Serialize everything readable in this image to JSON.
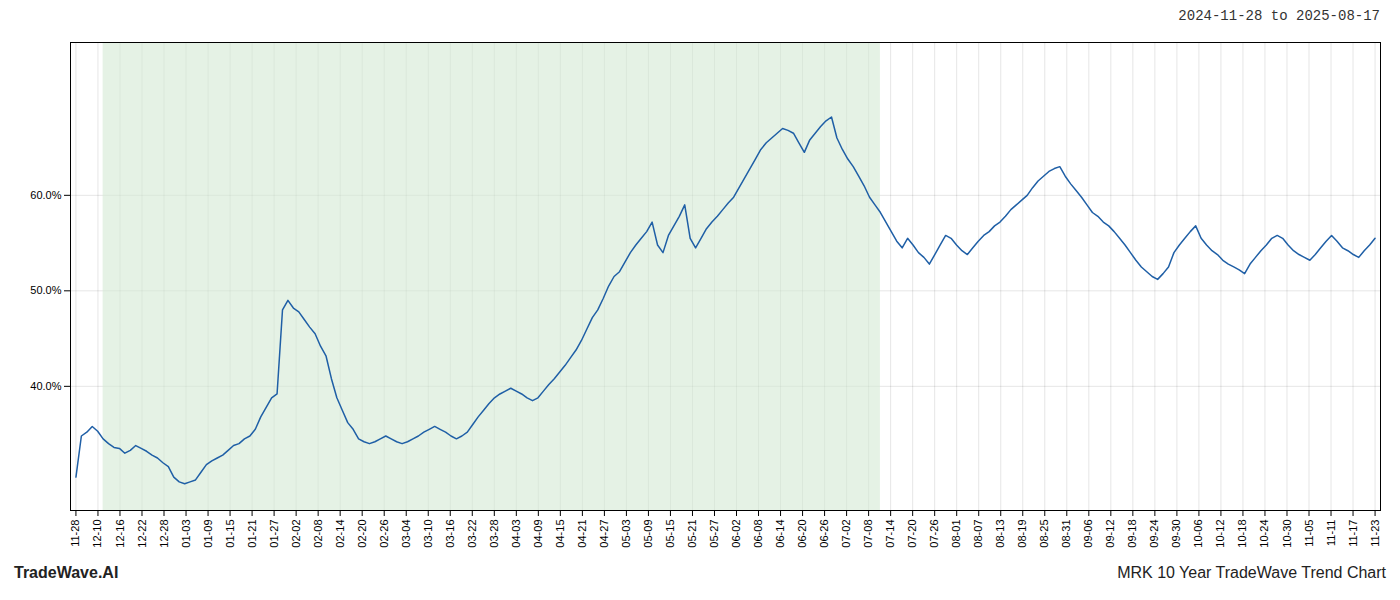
{
  "chart_data": {
    "type": "line",
    "title": "2024-11-28 to 2025-08-17",
    "footer_left": "TradeWave.AI",
    "footer_right": "MRK 10 Year TradeWave Trend Chart",
    "color": "#1f5fa6",
    "grid": true,
    "ylim": [
      0.27,
      0.76
    ],
    "yticks": [
      {
        "value": 0.4,
        "label": "40.0%"
      },
      {
        "value": 0.5,
        "label": "50.0%"
      },
      {
        "value": 0.6,
        "label": "60.0%"
      }
    ],
    "xlim": [
      -1,
      240
    ],
    "xtick_labels": [
      "11-28",
      "12-10",
      "12-16",
      "12-22",
      "12-28",
      "01-03",
      "01-09",
      "01-15",
      "01-21",
      "01-27",
      "02-02",
      "02-08",
      "02-14",
      "02-20",
      "02-26",
      "03-04",
      "03-10",
      "03-16",
      "03-22",
      "03-28",
      "04-03",
      "04-09",
      "04-15",
      "04-21",
      "04-27",
      "05-03",
      "05-09",
      "05-15",
      "05-21",
      "05-27",
      "06-02",
      "06-08",
      "06-14",
      "06-20",
      "06-26",
      "07-02",
      "07-08",
      "07-14",
      "07-20",
      "07-26",
      "08-01",
      "08-07",
      "08-13",
      "08-19",
      "08-25",
      "08-31",
      "09-06",
      "09-12",
      "09-18",
      "09-24",
      "09-30",
      "10-06",
      "10-12",
      "10-18",
      "10-24",
      "10-30",
      "11-05",
      "11-11",
      "11-17",
      "11-23"
    ],
    "shaded_region": {
      "x": [
        5,
        148
      ],
      "color": "#d4ead4"
    },
    "values": [
      0.305,
      0.348,
      0.352,
      0.358,
      0.353,
      0.345,
      0.34,
      0.336,
      0.335,
      0.33,
      0.333,
      0.338,
      0.335,
      0.332,
      0.328,
      0.325,
      0.32,
      0.316,
      0.305,
      0.3,
      0.298,
      0.3,
      0.302,
      0.31,
      0.318,
      0.322,
      0.325,
      0.328,
      0.333,
      0.338,
      0.34,
      0.345,
      0.348,
      0.355,
      0.368,
      0.378,
      0.388,
      0.392,
      0.48,
      0.49,
      0.482,
      0.478,
      0.47,
      0.462,
      0.455,
      0.442,
      0.432,
      0.408,
      0.388,
      0.375,
      0.362,
      0.355,
      0.345,
      0.342,
      0.34,
      0.342,
      0.345,
      0.348,
      0.345,
      0.342,
      0.34,
      0.342,
      0.345,
      0.348,
      0.352,
      0.355,
      0.358,
      0.355,
      0.352,
      0.348,
      0.345,
      0.348,
      0.352,
      0.36,
      0.368,
      0.375,
      0.382,
      0.388,
      0.392,
      0.395,
      0.398,
      0.395,
      0.392,
      0.388,
      0.385,
      0.388,
      0.395,
      0.402,
      0.408,
      0.415,
      0.422,
      0.43,
      0.438,
      0.448,
      0.46,
      0.472,
      0.48,
      0.492,
      0.505,
      0.515,
      0.52,
      0.53,
      0.54,
      0.548,
      0.555,
      0.562,
      0.572,
      0.548,
      0.54,
      0.558,
      0.568,
      0.578,
      0.59,
      0.555,
      0.545,
      0.555,
      0.565,
      0.572,
      0.578,
      0.585,
      0.592,
      0.598,
      0.608,
      0.618,
      0.628,
      0.638,
      0.648,
      0.655,
      0.66,
      0.665,
      0.67,
      0.668,
      0.665,
      0.655,
      0.645,
      0.658,
      0.665,
      0.672,
      0.678,
      0.682,
      0.66,
      0.648,
      0.638,
      0.63,
      0.62,
      0.61,
      0.598,
      0.59,
      0.582,
      0.572,
      0.562,
      0.552,
      0.545,
      0.555,
      0.548,
      0.54,
      0.535,
      0.528,
      0.538,
      0.548,
      0.558,
      0.555,
      0.548,
      0.542,
      0.538,
      0.545,
      0.552,
      0.558,
      0.562,
      0.568,
      0.572,
      0.578,
      0.585,
      0.59,
      0.595,
      0.6,
      0.608,
      0.615,
      0.62,
      0.625,
      0.628,
      0.63,
      0.62,
      0.612,
      0.605,
      0.598,
      0.59,
      0.582,
      0.578,
      0.572,
      0.568,
      0.562,
      0.555,
      0.548,
      0.54,
      0.532,
      0.525,
      0.52,
      0.515,
      0.512,
      0.518,
      0.525,
      0.54,
      0.548,
      0.555,
      0.562,
      0.568,
      0.555,
      0.548,
      0.542,
      0.538,
      0.532,
      0.528,
      0.525,
      0.522,
      0.518,
      0.528,
      0.535,
      0.542,
      0.548,
      0.555,
      0.558,
      0.555,
      0.548,
      0.542,
      0.538,
      0.535,
      0.532,
      0.538,
      0.545,
      0.552,
      0.558,
      0.552,
      0.545,
      0.542,
      0.538,
      0.535,
      0.542,
      0.548,
      0.555
    ]
  }
}
